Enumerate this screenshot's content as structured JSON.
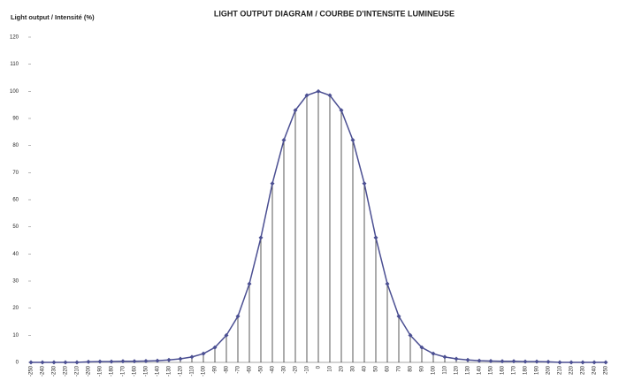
{
  "chart_data": {
    "type": "line",
    "title": "LIGHT OUTPUT DIAGRAM / COURBE D'INTENSITE LUMINEUSE",
    "y_label": "Light output / Intensité (%)",
    "x": [
      -250,
      -240,
      -230,
      -220,
      -210,
      -200,
      -190,
      -180,
      -170,
      -160,
      -150,
      -140,
      -130,
      -120,
      -110,
      -100,
      -90,
      -80,
      -70,
      -60,
      -50,
      -40,
      -30,
      -20,
      -10,
      0,
      10,
      20,
      30,
      40,
      50,
      60,
      70,
      80,
      90,
      100,
      110,
      120,
      130,
      140,
      150,
      160,
      170,
      180,
      190,
      200,
      210,
      220,
      230,
      240,
      250
    ],
    "values": [
      0,
      0,
      0,
      0,
      0,
      0.2,
      0.3,
      0.3,
      0.4,
      0.4,
      0.5,
      0.6,
      0.9,
      1.3,
      2,
      3.2,
      5.5,
      10,
      17,
      29,
      46,
      66,
      82,
      93,
      98.5,
      100,
      98.5,
      93,
      82,
      66,
      46,
      29,
      17,
      10,
      5.5,
      3.2,
      2,
      1.3,
      0.9,
      0.6,
      0.5,
      0.4,
      0.4,
      0.3,
      0.3,
      0.2,
      0,
      0,
      0,
      0,
      0
    ],
    "color": "#4b4f92",
    "xlim": [
      -250,
      250
    ],
    "ylim": [
      0,
      120
    ],
    "yticks": [
      0,
      10,
      20,
      30,
      40,
      50,
      60,
      70,
      80,
      90,
      100,
      110,
      120
    ],
    "drop_lines": true
  }
}
